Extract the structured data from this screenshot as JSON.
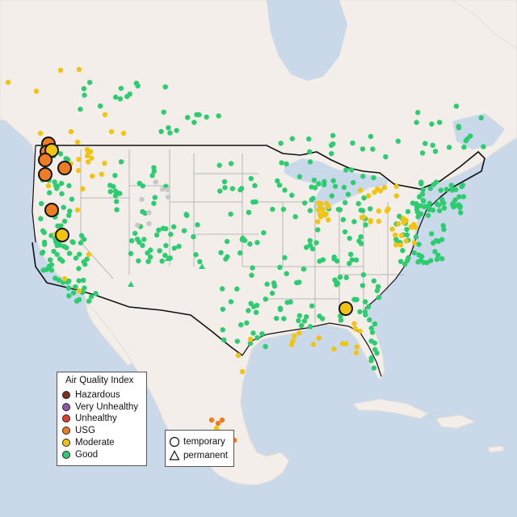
{
  "legend": {
    "title": "Air Quality Index",
    "categories": [
      {
        "label": "Hazardous",
        "color": "#7e2d1f"
      },
      {
        "label": "Very Unhealthy",
        "color": "#8e56b0"
      },
      {
        "label": "Unhealthy",
        "color": "#e2402f"
      },
      {
        "label": "USG",
        "color": "#ee7d22"
      },
      {
        "label": "Moderate",
        "color": "#f1c40f"
      },
      {
        "label": "Good",
        "color": "#2ecc71"
      }
    ],
    "types": [
      {
        "label": "temporary",
        "icon": "circle-icon"
      },
      {
        "label": "permanent",
        "icon": "triangle-icon"
      }
    ]
  },
  "map": {
    "water_color": "#c9d9e9",
    "land_color": "#f3eeea",
    "inactive_station_color": "#c8c8c8"
  }
}
